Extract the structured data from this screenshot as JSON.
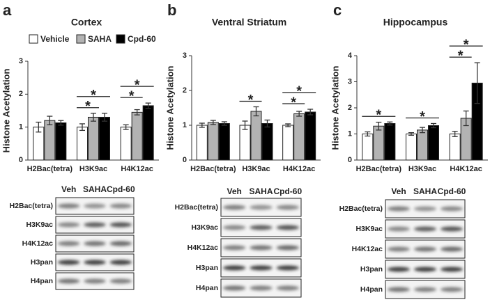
{
  "chart_data": [
    {
      "type": "bar",
      "panel": "a",
      "title": "Cortex",
      "ylabel": "Histone Acetylation",
      "categories": [
        "H2Bac(tetra)",
        "H3K9ac",
        "H4K12ac"
      ],
      "series": [
        {
          "name": "Vehicle",
          "color": "#ffffff",
          "values": [
            1.0,
            1.0,
            1.0
          ],
          "errors": [
            0.15,
            0.1,
            0.07
          ]
        },
        {
          "name": "SAHA",
          "color": "#b3b3b3",
          "values": [
            1.2,
            1.3,
            1.45
          ],
          "errors": [
            0.13,
            0.12,
            0.08
          ]
        },
        {
          "name": "Cpd-60",
          "color": "#000000",
          "values": [
            1.13,
            1.3,
            1.65
          ],
          "errors": [
            0.07,
            0.12,
            0.08
          ]
        }
      ],
      "ylim": [
        0,
        3
      ],
      "yticks": [
        0,
        1,
        2,
        3
      ],
      "legend": true,
      "significance": [
        {
          "label": "*",
          "category": "H3K9ac",
          "from": "Vehicle",
          "to": "SAHA"
        },
        {
          "label": "*",
          "category": "H3K9ac",
          "from": "Vehicle",
          "to": "Cpd-60"
        },
        {
          "label": "*",
          "category": "H4K12ac",
          "from": "Vehicle",
          "to": "SAHA"
        },
        {
          "label": "*",
          "category": "H4K12ac",
          "from": "Vehicle",
          "to": "Cpd-60"
        }
      ]
    },
    {
      "type": "bar",
      "panel": "b",
      "title": "Ventral Striatum",
      "ylabel": "Histone Acetylation",
      "categories": [
        "H2Bac(tetra)",
        "H3K9ac",
        "H4K12ac"
      ],
      "series": [
        {
          "name": "Vehicle",
          "color": "#ffffff",
          "values": [
            1.0,
            1.0,
            1.0
          ],
          "errors": [
            0.06,
            0.12,
            0.04
          ]
        },
        {
          "name": "SAHA",
          "color": "#b3b3b3",
          "values": [
            1.08,
            1.4,
            1.33
          ],
          "errors": [
            0.06,
            0.13,
            0.07
          ]
        },
        {
          "name": "Cpd-60",
          "color": "#000000",
          "values": [
            1.05,
            1.05,
            1.38
          ],
          "errors": [
            0.05,
            0.1,
            0.08
          ]
        }
      ],
      "ylim": [
        0,
        3
      ],
      "yticks": [
        0,
        1,
        2,
        3
      ],
      "legend": false,
      "significance": [
        {
          "label": "*",
          "category": "H3K9ac",
          "from": "Vehicle",
          "to": "SAHA"
        },
        {
          "label": "*",
          "category": "H4K12ac",
          "from": "Vehicle",
          "to": "SAHA"
        },
        {
          "label": "*",
          "category": "H4K12ac",
          "from": "Vehicle",
          "to": "Cpd-60"
        }
      ]
    },
    {
      "type": "bar",
      "panel": "c",
      "title": "Hippocampus",
      "ylabel": "Histone Acetylation",
      "categories": [
        "H2Bac(tetra)",
        "H3K9ac",
        "H4K12ac"
      ],
      "series": [
        {
          "name": "Vehicle",
          "color": "#ffffff",
          "values": [
            1.0,
            1.0,
            1.0
          ],
          "errors": [
            0.08,
            0.05,
            0.1
          ]
        },
        {
          "name": "SAHA",
          "color": "#b3b3b3",
          "values": [
            1.3,
            1.15,
            1.6
          ],
          "errors": [
            0.15,
            0.1,
            0.28
          ]
        },
        {
          "name": "Cpd-60",
          "color": "#000000",
          "values": [
            1.4,
            1.32,
            2.95
          ],
          "errors": [
            0.06,
            0.08,
            0.78
          ]
        }
      ],
      "ylim": [
        0,
        4
      ],
      "yticks": [
        0,
        1,
        2,
        3,
        4
      ],
      "legend": false,
      "significance": [
        {
          "label": "*",
          "category": "H2Bac(tetra)",
          "from": "Vehicle",
          "to": "Cpd-60"
        },
        {
          "label": "*",
          "category": "H3K9ac",
          "from": "Vehicle",
          "to": "Cpd-60"
        },
        {
          "label": "*",
          "category": "H4K12ac",
          "from": "Vehicle",
          "to": "SAHA"
        },
        {
          "label": "*",
          "category": "H4K12ac",
          "from": "Vehicle",
          "to": "Cpd-60"
        }
      ]
    }
  ],
  "blots": [
    {
      "columns": [
        "Veh",
        "SAHA",
        "Cpd-60"
      ],
      "rows": [
        "H2Bac(tetra)",
        "H3K9ac",
        "H4K12ac",
        "H3pan",
        "H4pan"
      ]
    },
    {
      "columns": [
        "Veh",
        "SAHA",
        "Cpd-60"
      ],
      "rows": [
        "H2Bac(tetra)",
        "H3K9ac",
        "H4K12ac",
        "H3pan",
        "H4pan"
      ]
    },
    {
      "columns": [
        "Veh",
        "SAHA",
        "Cpd-60"
      ],
      "rows": [
        "H2Bac(tetra)",
        "H3K9ac",
        "H4K12ac",
        "H3pan",
        "H4pan"
      ]
    }
  ]
}
